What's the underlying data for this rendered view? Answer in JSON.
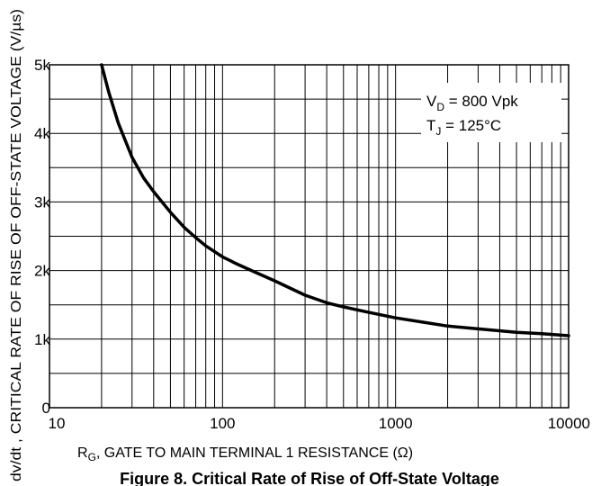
{
  "chart_data": {
    "type": "line",
    "x_scale": "log",
    "xlim": [
      10,
      10000
    ],
    "ylim": [
      0,
      5000
    ],
    "x_tick_labels": [
      "10",
      "100",
      "1000",
      "10000"
    ],
    "y_tick_labels": [
      "0",
      "1k",
      "2k",
      "3k",
      "4k",
      "5k"
    ],
    "y_tick_values": [
      0,
      1000,
      2000,
      3000,
      4000,
      5000
    ],
    "grid": true,
    "xlabel": {
      "prefix": "R",
      "subscript": "G",
      "text": ", GATE TO MAIN TERMINAL 1 RESISTANCE (Ω)"
    },
    "ylabel": "dv/dt , CRITICAL RATE OF RISE OF OFF-STATE VOLTAGE (V/µs)",
    "caption": "Figure 8. Critical Rate of Rise of Off-State Voltage",
    "annotations": {
      "vd": {
        "prefix": "V",
        "subscript": "D",
        "text": " = 800 Vpk"
      },
      "tj": {
        "prefix": "T",
        "subscript": "J",
        "text": " = 125°C"
      }
    },
    "series": [
      {
        "x": [
          20,
          22,
          25,
          30,
          35,
          40,
          50,
          60,
          70,
          80,
          100,
          120,
          150,
          200,
          300,
          400,
          500,
          700,
          1000,
          1500,
          2000,
          3000,
          5000,
          7000,
          10000
        ],
        "values": [
          5000,
          4600,
          4150,
          3650,
          3350,
          3150,
          2850,
          2630,
          2480,
          2360,
          2200,
          2100,
          1990,
          1850,
          1640,
          1530,
          1470,
          1390,
          1310,
          1240,
          1190,
          1150,
          1100,
          1080,
          1050
        ]
      }
    ]
  }
}
